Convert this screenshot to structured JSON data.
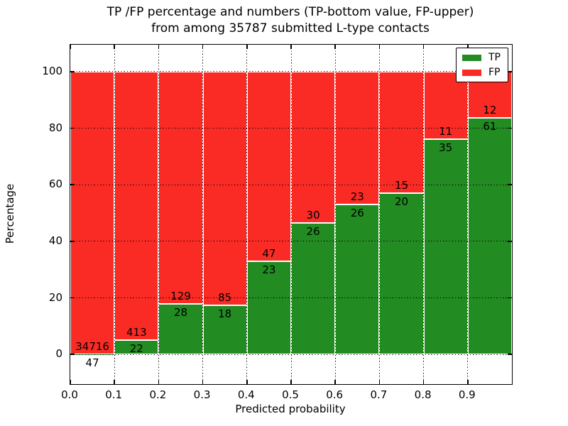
{
  "title": {
    "line1": "TP /FP percentage and numbers (TP-bottom value, FP-upper)",
    "line2": "from among 35787 submitted L-type contacts"
  },
  "chart_data": {
    "type": "bar",
    "stacked": true,
    "normalized_to_percent": true,
    "title": "TP /FP percentage and numbers (TP-bottom value, FP-upper) from among 35787 submitted L-type contacts",
    "total_submitted": 35787,
    "xlabel": "Predicted probability",
    "ylabel": "Percentage",
    "xlim": [
      0.0,
      1.0
    ],
    "ylim": [
      -10.5,
      109.5
    ],
    "grid": "dotted",
    "legend_position": "upper right",
    "series": [
      {
        "name": "TP",
        "color": "#228b22"
      },
      {
        "name": "FP",
        "color": "#fa2b25"
      }
    ],
    "bins": [
      {
        "x0": 0.0,
        "x1": 0.1,
        "tp": 47,
        "fp": 34716
      },
      {
        "x0": 0.1,
        "x1": 0.2,
        "tp": 22,
        "fp": 413
      },
      {
        "x0": 0.2,
        "x1": 0.3,
        "tp": 28,
        "fp": 129
      },
      {
        "x0": 0.3,
        "x1": 0.4,
        "tp": 18,
        "fp": 85
      },
      {
        "x0": 0.4,
        "x1": 0.5,
        "tp": 23,
        "fp": 47
      },
      {
        "x0": 0.5,
        "x1": 0.6,
        "tp": 26,
        "fp": 30
      },
      {
        "x0": 0.6,
        "x1": 0.7,
        "tp": 26,
        "fp": 23
      },
      {
        "x0": 0.7,
        "x1": 0.8,
        "tp": 20,
        "fp": 15
      },
      {
        "x0": 0.8,
        "x1": 0.9,
        "tp": 35,
        "fp": 11
      },
      {
        "x0": 0.9,
        "x1": 1.0,
        "tp": 61,
        "fp": 12
      }
    ],
    "x_ticks": [
      0.0,
      0.1,
      0.2,
      0.3,
      0.4,
      0.5,
      0.6,
      0.7,
      0.8,
      0.9
    ],
    "x_tick_labels": [
      "0.0",
      "0.1",
      "0.2",
      "0.3",
      "0.4",
      "0.5",
      "0.6",
      "0.7",
      "0.8",
      "0.9"
    ],
    "y_ticks": [
      0,
      20,
      40,
      60,
      80,
      100
    ],
    "y_tick_labels": [
      "0",
      "20",
      "40",
      "60",
      "80",
      "100"
    ],
    "x_gridlines": [
      0.1,
      0.2,
      0.3,
      0.4,
      0.5,
      0.6,
      0.7,
      0.8,
      0.9
    ],
    "bar_edge_color": "#ffffff"
  },
  "legend": {
    "items": [
      {
        "label": "TP",
        "color": "#228b22"
      },
      {
        "label": "FP",
        "color": "#fa2b25"
      }
    ]
  }
}
